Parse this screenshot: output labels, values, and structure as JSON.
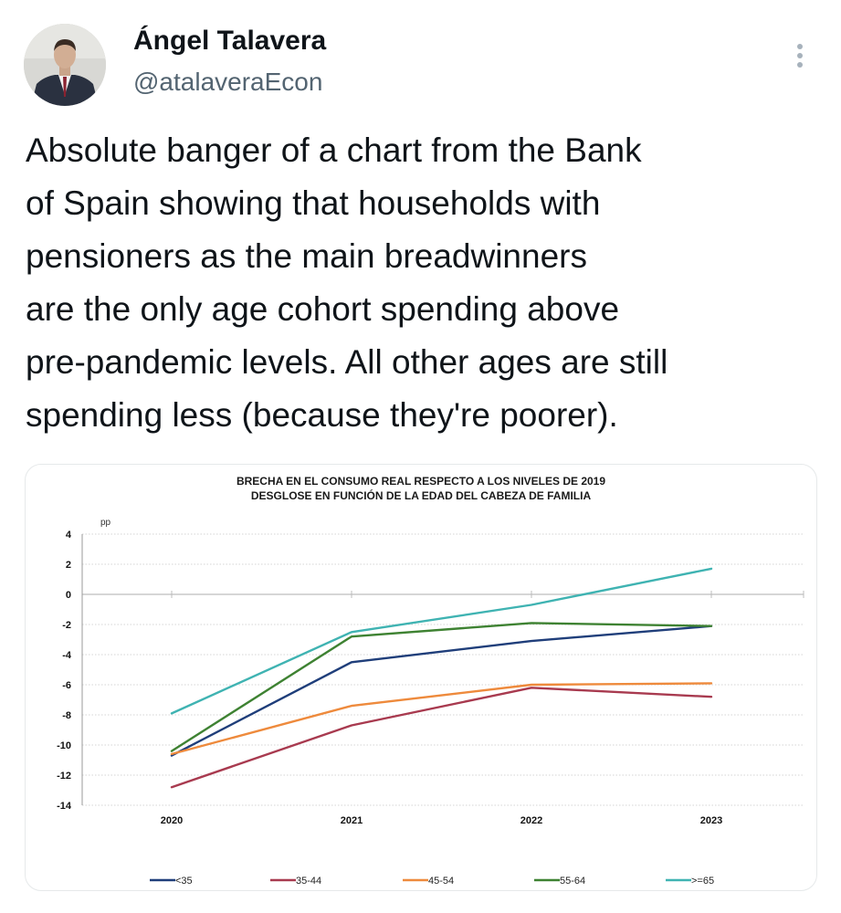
{
  "author": {
    "name": "Ángel Talavera",
    "handle": "@atalaveraEcon"
  },
  "tweet": {
    "lines": [
      "Absolute banger of a chart from the Bank",
      "of Spain showing that households with",
      "pensioners as the main breadwinners",
      "are the only age cohort spending above",
      "pre-pandemic levels. All other ages are still",
      "spending less (because they're poorer)."
    ]
  },
  "chart_data": {
    "type": "line",
    "title": "BRECHA EN EL CONSUMO REAL RESPECTO A LOS NIVELES DE 2019",
    "subtitle": "DESGLOSE EN FUNCIÓN DE LA EDAD DEL CABEZA DE FAMILIA",
    "ylabel": "pp",
    "xlabel": "",
    "ylim": [
      -14,
      4
    ],
    "yticks": [
      "4",
      "2",
      "0",
      "-2",
      "-4",
      "-6",
      "-8",
      "-10",
      "-12",
      "-14"
    ],
    "categories": [
      "2020",
      "2021",
      "2022",
      "2023"
    ],
    "legend_position": "bottom",
    "series": [
      {
        "name": "<35",
        "color": "#1f3e7a",
        "values": [
          -10.7,
          -4.5,
          -3.1,
          -2.1
        ]
      },
      {
        "name": "35-44",
        "color": "#a83a4f",
        "values": [
          -12.8,
          -8.7,
          -6.2,
          -6.8
        ]
      },
      {
        "name": "45-54",
        "color": "#ee8a3c",
        "values": [
          -10.6,
          -7.4,
          -6.0,
          -5.9
        ]
      },
      {
        "name": "55-64",
        "color": "#3e8232",
        "values": [
          -10.4,
          -2.8,
          -1.9,
          -2.1
        ]
      },
      {
        "name": ">=65",
        "color": "#3fb3b2",
        "values": [
          -7.9,
          -2.5,
          -0.7,
          1.7
        ]
      }
    ]
  }
}
